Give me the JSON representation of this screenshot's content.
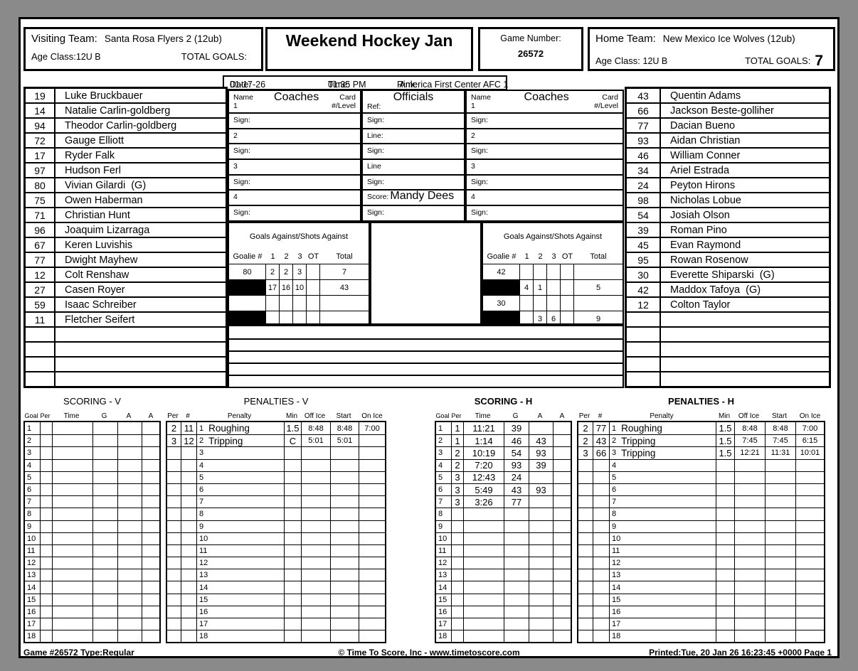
{
  "header": {
    "visiting_label": "Visiting Team:",
    "visiting_name": "Santa Rosa Flyers 2 (12ub)",
    "visiting_age_label": "Age Class:",
    "visiting_age": "12U B",
    "visiting_goals_label": "TOTAL GOALS:",
    "visiting_goals": "",
    "title": "Weekend Hockey Jan",
    "game_number_label": "Game Number:",
    "game_number": "26572",
    "home_label": "Home Team:",
    "home_name": "New Mexico Ice Wolves (12ub)",
    "home_age_label": "Age Class:",
    "home_age": "12U B",
    "home_goals_label": "TOTAL GOALS:",
    "home_goals": "7"
  },
  "info": {
    "date_label": "Date:",
    "date": "01-17-26",
    "time_label": "Time:",
    "time": "01:35 PM",
    "rink_label": "Rink:",
    "rink": "America First Center AFC 1"
  },
  "visiting_roster": {
    "rows_total": 20,
    "players": [
      [
        "19",
        "Luke Bruckbauer"
      ],
      [
        "14",
        "Natalie Carlin-goldberg"
      ],
      [
        "94",
        "Theodor Carlin-goldberg"
      ],
      [
        "72",
        "Gauge Elliott"
      ],
      [
        "17",
        "Ryder Falk"
      ],
      [
        "97",
        "Hudson Ferl"
      ],
      [
        "80",
        "Vivian Gilardi  (G)"
      ],
      [
        "75",
        "Owen Haberman"
      ],
      [
        "71",
        "Christian Hunt"
      ],
      [
        "96",
        "Joaquim Lizarraga"
      ],
      [
        "67",
        "Keren Luvishis"
      ],
      [
        "77",
        "Dwight Mayhew"
      ],
      [
        "12",
        "Colt Renshaw"
      ],
      [
        "27",
        "Casen Royer"
      ],
      [
        "59",
        "Isaac Schreiber"
      ],
      [
        "11",
        "Fletcher Seifert"
      ]
    ]
  },
  "home_roster": {
    "rows_total": 20,
    "players": [
      [
        "43",
        "Quentin Adams"
      ],
      [
        "66",
        "Jackson Beste-golliher"
      ],
      [
        "77",
        "Dacian Bueno"
      ],
      [
        "93",
        "Aidan Christian"
      ],
      [
        "46",
        "William Conner"
      ],
      [
        "34",
        "Ariel Estrada"
      ],
      [
        "24",
        "Peyton Hirons"
      ],
      [
        "98",
        "Nicholas Lobue"
      ],
      [
        "54",
        "Josiah Olson"
      ],
      [
        "39",
        "Roman Pino"
      ],
      [
        "45",
        "Evan Raymond"
      ],
      [
        "95",
        "Rowan Rosenow"
      ],
      [
        "30",
        "Everette Shiparski  (G)"
      ],
      [
        "42",
        "Maddox Tafoya  (G)"
      ],
      [
        "12",
        "Colton Taylor"
      ]
    ]
  },
  "coaches_v": {
    "name_label": "Name",
    "title": "Coaches",
    "card_label": "Card",
    "first_row": "1",
    "level_label": "#/Level",
    "rows": [
      "Sign:",
      "2",
      "Sign:",
      "3",
      "Sign:",
      "4",
      "Sign:"
    ]
  },
  "coaches_h": {
    "name_label": "Name",
    "title": "Coaches",
    "card_label": "Card",
    "first_row": "1",
    "level_label": "#/Level",
    "rows": [
      "Sign:",
      "2",
      "Sign:",
      "3",
      "Sign:",
      "4",
      "Sign:"
    ]
  },
  "officials": {
    "title": "Officials",
    "ref_label": "Ref:",
    "rows": [
      {
        "l": "Sign:"
      },
      {
        "l": "Line:"
      },
      {
        "l": "Sign:"
      },
      {
        "l": "Line"
      },
      {
        "l": "Sign:"
      },
      {
        "l": "Score:",
        "v": "Mandy Dees"
      },
      {
        "l": "Sign:"
      }
    ]
  },
  "goals_against": {
    "heading": "Goals Against/Shots Against",
    "headers": [
      "Goalie #",
      "1",
      "2",
      "3",
      "OT",
      "Total"
    ],
    "visitor": {
      "black_rows": [
        1,
        3
      ],
      "rows": [
        [
          "80",
          "2",
          "2",
          "3",
          "",
          "7"
        ],
        [
          "",
          "17",
          "16",
          "10",
          "",
          "43"
        ],
        [
          "",
          "",
          "",
          "",
          "",
          ""
        ],
        [
          "",
          "",
          "",
          "",
          "",
          ""
        ]
      ]
    },
    "home": {
      "black_rows": [
        1,
        3
      ],
      "rows": [
        [
          "42",
          "",
          "",
          "",
          "",
          ""
        ],
        [
          "",
          "4",
          "1",
          "",
          "",
          "5"
        ],
        [
          "30",
          "",
          "",
          "",
          "",
          ""
        ],
        [
          "",
          "",
          "3",
          "6",
          "",
          "9"
        ]
      ]
    }
  },
  "scoring_v": {
    "title": "SCORING - V",
    "headers": [
      "Goal",
      "Per",
      "Time",
      "G",
      "A",
      "A"
    ],
    "rows_total": 18,
    "entries": []
  },
  "penalties_v": {
    "title": "PENALTIES - V",
    "headers": [
      "Per",
      "#",
      "Penalty",
      "Min",
      "Off Ice",
      "Start",
      "On Ice"
    ],
    "rows_total": 18,
    "entries": [
      [
        "2",
        "11",
        "Roughing",
        "1.5",
        "8:48",
        "8:48",
        "7:00"
      ],
      [
        "3",
        "12",
        "Tripping",
        "C",
        "5:01",
        "5:01",
        ""
      ]
    ]
  },
  "scoring_h": {
    "title": "SCORING - H",
    "headers": [
      "Goal",
      "Per",
      "Time",
      "G",
      "A",
      "A"
    ],
    "rows_total": 18,
    "entries": [
      [
        "1",
        "11:21",
        "39",
        "",
        ""
      ],
      [
        "1",
        "1:14",
        "46",
        "43",
        ""
      ],
      [
        "2",
        "10:19",
        "54",
        "93",
        ""
      ],
      [
        "2",
        "7:20",
        "93",
        "39",
        ""
      ],
      [
        "3",
        "12:43",
        "24",
        "",
        ""
      ],
      [
        "3",
        "5:49",
        "43",
        "93",
        ""
      ],
      [
        "3",
        "3:26",
        "77",
        "",
        ""
      ]
    ]
  },
  "penalties_h": {
    "title": "PENALTIES - H",
    "headers": [
      "Per",
      "#",
      "Penalty",
      "Min",
      "Off Ice",
      "Start",
      "On Ice"
    ],
    "rows_total": 18,
    "entries": [
      [
        "2",
        "77",
        "Roughing",
        "1.5",
        "8:48",
        "8:48",
        "7:00"
      ],
      [
        "2",
        "43",
        "Tripping",
        "1.5",
        "7:45",
        "7:45",
        "6:15"
      ],
      [
        "3",
        "66",
        "Tripping",
        "1.5",
        "12:21",
        "11:31",
        "10:01"
      ]
    ]
  },
  "footer": {
    "left": "Game #26572 Type:Regular",
    "center": "© Time To Score, Inc - www.timetoscore.com",
    "right": "Printed:Tue, 20 Jan 26 16:23:45 +0000 Page 1"
  },
  "colors": {
    "surround": "#8a8a8a",
    "paper": "#ffffff",
    "line": "#000000"
  }
}
